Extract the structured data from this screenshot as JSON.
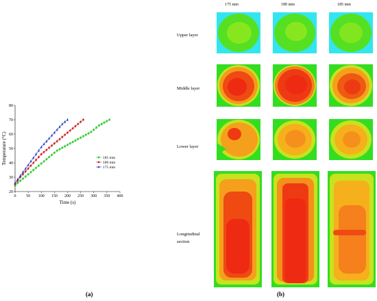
{
  "chart_data": {
    "type": "line",
    "xlabel": "Time (s)",
    "ylabel": "Temperature (°C)",
    "xlim": [
      0,
      400
    ],
    "ylim": [
      20,
      80
    ],
    "xticks": [
      "0",
      "50",
      "100",
      "150",
      "200",
      "250",
      "300",
      "350",
      "400"
    ],
    "yticks": [
      "20",
      "30",
      "40",
      "50",
      "60",
      "70",
      "80"
    ],
    "legend_position": "right",
    "series": [
      {
        "name": "185 mm",
        "color": "#2ecc2e",
        "marker": "square",
        "x": [
          0,
          10,
          20,
          30,
          40,
          50,
          60,
          70,
          80,
          90,
          100,
          110,
          120,
          130,
          140,
          150,
          160,
          170,
          180,
          190,
          200,
          210,
          220,
          230,
          240,
          250,
          260,
          270,
          280,
          290,
          300,
          310,
          320,
          330,
          340,
          350,
          360
        ],
        "y": [
          24,
          26,
          27.5,
          29,
          30.5,
          32,
          33.5,
          35,
          36.5,
          38,
          39.5,
          41,
          42.5,
          44,
          45.5,
          47,
          48.5,
          49.5,
          50.5,
          51.5,
          52.5,
          53.5,
          54.5,
          55.5,
          56.5,
          57.5,
          58.5,
          59.5,
          60.5,
          61.5,
          63,
          64.5,
          66,
          67,
          68,
          69,
          70
        ]
      },
      {
        "name": "180 mm",
        "color": "#cc2222",
        "marker": "circle",
        "x": [
          0,
          10,
          20,
          30,
          40,
          50,
          60,
          70,
          80,
          90,
          100,
          110,
          120,
          130,
          140,
          150,
          160,
          170,
          180,
          190,
          200,
          210,
          220,
          230,
          240,
          250,
          260
        ],
        "y": [
          25,
          27.5,
          30,
          32,
          34,
          36,
          38,
          40,
          42,
          44,
          46,
          47.5,
          49,
          50.5,
          52,
          53.5,
          55,
          56.5,
          58,
          59.5,
          61,
          62.5,
          64,
          65.5,
          67,
          68.5,
          70
        ]
      },
      {
        "name": "175 mm",
        "color": "#1f2fbf",
        "marker": "triangle",
        "x": [
          0,
          10,
          20,
          30,
          40,
          50,
          60,
          70,
          80,
          90,
          100,
          110,
          120,
          130,
          140,
          150,
          160,
          170,
          180,
          190,
          200
        ],
        "y": [
          26,
          28.5,
          31,
          33.5,
          36,
          38.5,
          41,
          43.5,
          46,
          48.5,
          51,
          53,
          55,
          57,
          59,
          61,
          63,
          65,
          67,
          68.5,
          70
        ]
      }
    ]
  },
  "panel_a_label": "(a)",
  "panel_b_label": "(b)",
  "columns": [
    "175 mm",
    "180 mm",
    "185 mm"
  ],
  "rows": [
    "Upper layer",
    "Middle layer",
    "Lower layer",
    "Longitudinal",
    "section"
  ],
  "colors": {
    "cyan": "#33e5ee",
    "green": "#33dd22",
    "yellow": "#c8e21e",
    "orange": "#f59a1c",
    "red": "#ee2a12"
  }
}
